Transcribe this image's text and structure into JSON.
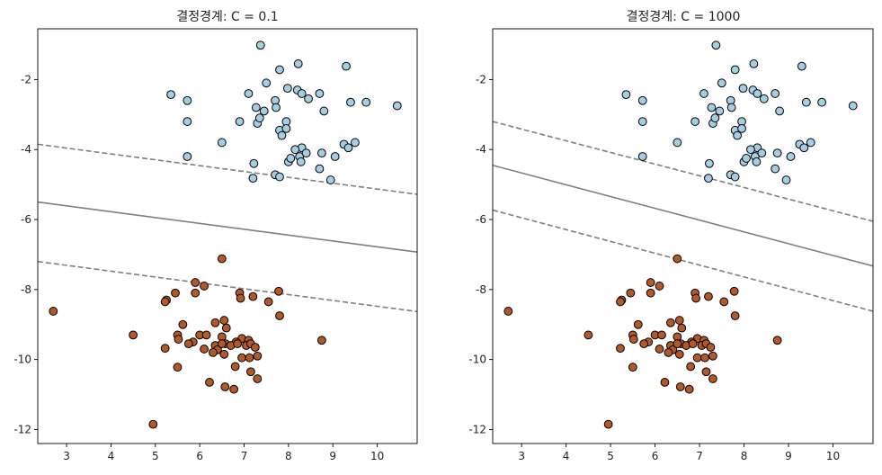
{
  "chart_data": [
    {
      "type": "scatter",
      "title": "결정경계: C = 0.1",
      "xlabel": "",
      "ylabel": "",
      "xlim": [
        2.35,
        10.9
      ],
      "ylim": [
        -12.4,
        -0.55
      ],
      "xticks": [
        3,
        4,
        5,
        6,
        7,
        8,
        9,
        10
      ],
      "yticks": [
        -2,
        -4,
        -6,
        -8,
        -10,
        -12
      ],
      "grid": false,
      "legend": "none",
      "marker_edge_color": "#000000",
      "series": [
        {
          "color": "#a6cee3",
          "points": [
            [
              7.37,
              -1.02
            ],
            [
              8.22,
              -1.55
            ],
            [
              7.8,
              -1.72
            ],
            [
              9.3,
              -1.62
            ],
            [
              5.35,
              -2.43
            ],
            [
              5.72,
              -2.6
            ],
            [
              7.1,
              -2.4
            ],
            [
              7.5,
              -2.1
            ],
            [
              7.7,
              -2.6
            ],
            [
              7.72,
              -2.8
            ],
            [
              7.27,
              -2.8
            ],
            [
              7.98,
              -2.25
            ],
            [
              8.2,
              -2.3
            ],
            [
              8.3,
              -2.4
            ],
            [
              8.45,
              -2.55
            ],
            [
              8.7,
              -2.4
            ],
            [
              9.4,
              -2.65
            ],
            [
              9.75,
              -2.65
            ],
            [
              10.45,
              -2.75
            ],
            [
              5.72,
              -3.2
            ],
            [
              6.9,
              -3.2
            ],
            [
              7.3,
              -3.25
            ],
            [
              7.35,
              -3.1
            ],
            [
              7.45,
              -2.9
            ],
            [
              7.8,
              -3.45
            ],
            [
              7.85,
              -3.6
            ],
            [
              7.95,
              -3.2
            ],
            [
              7.95,
              -3.4
            ],
            [
              8.8,
              -2.9
            ],
            [
              6.5,
              -3.8
            ],
            [
              8.3,
              -3.95
            ],
            [
              8.15,
              -4.0
            ],
            [
              8.25,
              -4.2
            ],
            [
              8.28,
              -4.35
            ],
            [
              8.4,
              -4.1
            ],
            [
              8.0,
              -4.35
            ],
            [
              8.05,
              -4.25
            ],
            [
              8.7,
              -4.55
            ],
            [
              8.75,
              -4.1
            ],
            [
              9.05,
              -4.2
            ],
            [
              9.25,
              -3.85
            ],
            [
              9.35,
              -3.95
            ],
            [
              9.5,
              -3.8
            ],
            [
              5.72,
              -4.2
            ],
            [
              7.22,
              -4.4
            ],
            [
              7.2,
              -4.82
            ],
            [
              7.7,
              -4.72
            ],
            [
              7.8,
              -4.78
            ],
            [
              8.95,
              -4.87
            ]
          ]
        },
        {
          "color": "#b15928",
          "points": [
            [
              6.5,
              -7.12
            ],
            [
              2.7,
              -8.62
            ],
            [
              5.9,
              -7.8
            ],
            [
              6.1,
              -7.9
            ],
            [
              5.25,
              -8.3
            ],
            [
              5.22,
              -8.35
            ],
            [
              5.45,
              -8.1
            ],
            [
              5.9,
              -8.1
            ],
            [
              6.9,
              -8.1
            ],
            [
              6.92,
              -8.25
            ],
            [
              7.2,
              -8.2
            ],
            [
              7.78,
              -8.05
            ],
            [
              7.55,
              -8.35
            ],
            [
              6.55,
              -8.88
            ],
            [
              6.35,
              -8.95
            ],
            [
              7.8,
              -8.75
            ],
            [
              5.62,
              -9.0
            ],
            [
              6.6,
              -9.1
            ],
            [
              8.75,
              -9.45
            ],
            [
              4.5,
              -9.3
            ],
            [
              5.5,
              -9.3
            ],
            [
              6.0,
              -9.3
            ],
            [
              6.15,
              -9.3
            ],
            [
              6.5,
              -9.35
            ],
            [
              6.58,
              -9.55
            ],
            [
              6.95,
              -9.4
            ],
            [
              6.82,
              -9.5
            ],
            [
              7.1,
              -9.45
            ],
            [
              7.05,
              -9.6
            ],
            [
              5.85,
              -9.5
            ],
            [
              5.75,
              -9.55
            ],
            [
              5.22,
              -9.68
            ],
            [
              5.52,
              -9.42
            ],
            [
              6.1,
              -9.7
            ],
            [
              6.35,
              -9.6
            ],
            [
              6.4,
              -9.72
            ],
            [
              6.5,
              -9.55
            ],
            [
              6.7,
              -9.6
            ],
            [
              6.85,
              -9.55
            ],
            [
              7.15,
              -9.55
            ],
            [
              7.25,
              -9.65
            ],
            [
              6.3,
              -9.8
            ],
            [
              6.95,
              -9.95
            ],
            [
              7.12,
              -9.95
            ],
            [
              6.55,
              -9.85
            ],
            [
              7.3,
              -9.9
            ],
            [
              6.8,
              -10.2
            ],
            [
              5.5,
              -10.22
            ],
            [
              7.15,
              -10.35
            ],
            [
              7.3,
              -10.55
            ],
            [
              6.22,
              -10.65
            ],
            [
              6.57,
              -10.78
            ],
            [
              6.77,
              -10.85
            ],
            [
              4.95,
              -11.85
            ]
          ]
        }
      ],
      "decision_boundary": {
        "solid": [
          [
            2.35,
            -5.5
          ],
          [
            10.9,
            -6.93
          ]
        ],
        "dashed": [
          [
            [
              2.35,
              -3.85
            ],
            [
              10.9,
              -5.28
            ]
          ],
          [
            [
              2.35,
              -7.2
            ],
            [
              10.9,
              -8.63
            ]
          ]
        ],
        "line_color": "#7f7f7f"
      }
    },
    {
      "type": "scatter",
      "title": "결정경계: C = 1000",
      "xlabel": "",
      "ylabel": "",
      "xlim": [
        2.35,
        10.9
      ],
      "ylim": [
        -12.4,
        -0.55
      ],
      "xticks": [
        3,
        4,
        5,
        6,
        7,
        8,
        9,
        10
      ],
      "yticks": [
        -2,
        -4,
        -6,
        -8,
        -10,
        -12
      ],
      "grid": false,
      "legend": "none",
      "marker_edge_color": "#000000",
      "series": [
        {
          "color": "#a6cee3",
          "points": [
            [
              7.37,
              -1.02
            ],
            [
              8.22,
              -1.55
            ],
            [
              7.8,
              -1.72
            ],
            [
              9.3,
              -1.62
            ],
            [
              5.35,
              -2.43
            ],
            [
              5.72,
              -2.6
            ],
            [
              7.1,
              -2.4
            ],
            [
              7.5,
              -2.1
            ],
            [
              7.7,
              -2.6
            ],
            [
              7.72,
              -2.8
            ],
            [
              7.27,
              -2.8
            ],
            [
              7.98,
              -2.25
            ],
            [
              8.2,
              -2.3
            ],
            [
              8.3,
              -2.4
            ],
            [
              8.45,
              -2.55
            ],
            [
              8.7,
              -2.4
            ],
            [
              9.4,
              -2.65
            ],
            [
              9.75,
              -2.65
            ],
            [
              10.45,
              -2.75
            ],
            [
              5.72,
              -3.2
            ],
            [
              6.9,
              -3.2
            ],
            [
              7.3,
              -3.25
            ],
            [
              7.35,
              -3.1
            ],
            [
              7.45,
              -2.9
            ],
            [
              7.8,
              -3.45
            ],
            [
              7.85,
              -3.6
            ],
            [
              7.95,
              -3.2
            ],
            [
              7.95,
              -3.4
            ],
            [
              8.8,
              -2.9
            ],
            [
              6.5,
              -3.8
            ],
            [
              8.3,
              -3.95
            ],
            [
              8.15,
              -4.0
            ],
            [
              8.25,
              -4.2
            ],
            [
              8.28,
              -4.35
            ],
            [
              8.4,
              -4.1
            ],
            [
              8.0,
              -4.35
            ],
            [
              8.05,
              -4.25
            ],
            [
              8.7,
              -4.55
            ],
            [
              8.75,
              -4.1
            ],
            [
              9.05,
              -4.2
            ],
            [
              9.25,
              -3.85
            ],
            [
              9.35,
              -3.95
            ],
            [
              9.5,
              -3.8
            ],
            [
              5.72,
              -4.2
            ],
            [
              7.22,
              -4.4
            ],
            [
              7.2,
              -4.82
            ],
            [
              7.7,
              -4.72
            ],
            [
              7.8,
              -4.78
            ],
            [
              8.95,
              -4.87
            ]
          ]
        },
        {
          "color": "#b15928",
          "points": [
            [
              6.5,
              -7.12
            ],
            [
              2.7,
              -8.62
            ],
            [
              5.9,
              -7.8
            ],
            [
              6.1,
              -7.9
            ],
            [
              5.25,
              -8.3
            ],
            [
              5.22,
              -8.35
            ],
            [
              5.45,
              -8.1
            ],
            [
              5.9,
              -8.1
            ],
            [
              6.9,
              -8.1
            ],
            [
              6.92,
              -8.25
            ],
            [
              7.2,
              -8.2
            ],
            [
              7.78,
              -8.05
            ],
            [
              7.55,
              -8.35
            ],
            [
              6.55,
              -8.88
            ],
            [
              6.35,
              -8.95
            ],
            [
              7.8,
              -8.75
            ],
            [
              5.62,
              -9.0
            ],
            [
              6.6,
              -9.1
            ],
            [
              8.75,
              -9.45
            ],
            [
              4.5,
              -9.3
            ],
            [
              5.5,
              -9.3
            ],
            [
              6.0,
              -9.3
            ],
            [
              6.15,
              -9.3
            ],
            [
              6.5,
              -9.35
            ],
            [
              6.58,
              -9.55
            ],
            [
              6.95,
              -9.4
            ],
            [
              6.82,
              -9.5
            ],
            [
              7.1,
              -9.45
            ],
            [
              7.05,
              -9.6
            ],
            [
              5.85,
              -9.5
            ],
            [
              5.75,
              -9.55
            ],
            [
              5.22,
              -9.68
            ],
            [
              5.52,
              -9.42
            ],
            [
              6.1,
              -9.7
            ],
            [
              6.35,
              -9.6
            ],
            [
              6.4,
              -9.72
            ],
            [
              6.5,
              -9.55
            ],
            [
              6.7,
              -9.6
            ],
            [
              6.85,
              -9.55
            ],
            [
              7.15,
              -9.55
            ],
            [
              7.25,
              -9.65
            ],
            [
              6.3,
              -9.8
            ],
            [
              6.95,
              -9.95
            ],
            [
              7.12,
              -9.95
            ],
            [
              6.55,
              -9.85
            ],
            [
              7.3,
              -9.9
            ],
            [
              6.8,
              -10.2
            ],
            [
              5.5,
              -10.22
            ],
            [
              7.15,
              -10.35
            ],
            [
              7.3,
              -10.55
            ],
            [
              6.22,
              -10.65
            ],
            [
              6.57,
              -10.78
            ],
            [
              6.77,
              -10.85
            ],
            [
              4.95,
              -11.85
            ]
          ]
        }
      ],
      "decision_boundary": {
        "solid": [
          [
            2.35,
            -4.45
          ],
          [
            10.9,
            -7.33
          ]
        ],
        "dashed": [
          [
            [
              2.35,
              -3.2
            ],
            [
              10.9,
              -6.05
            ]
          ],
          [
            [
              2.35,
              -5.73
            ],
            [
              10.9,
              -8.62
            ]
          ]
        ],
        "line_color": "#7f7f7f"
      }
    }
  ]
}
